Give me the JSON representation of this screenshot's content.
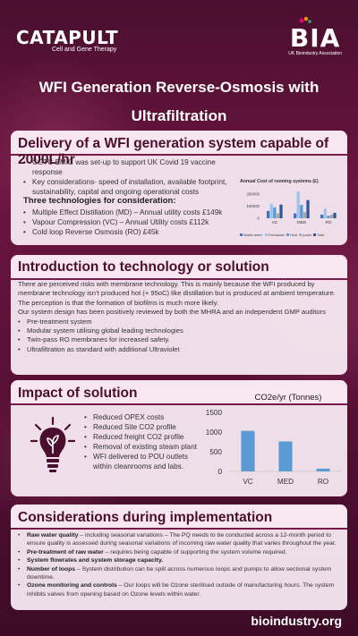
{
  "header": {
    "catapult_word_big": "CATAPULT",
    "catapult_sub": "Cell and Gene Therapy",
    "bia_word": "BIA",
    "bia_sub": "UK Bioindustry Association"
  },
  "title": {
    "line1": "WFI Generation Reverse-Osmosis with",
    "line2": "Ultrafiltration"
  },
  "delivery": {
    "title": "Delivery of a WFI generation system capable of 2000L/hr",
    "bullets": [
      "CGTC BMIC was set-up to support UK Covid 19 vaccine response",
      "Key considerations- speed of installation, available footprint, sustainability, capital and ongoing operational costs"
    ],
    "subhead": "Three technologies for consideration:",
    "tech": [
      "Multiple Effect Distillation (MD) – Annual utility costs £149k",
      "Vapour Compression (VC) – Annual Utility costs £112k",
      "Cold loop Reverse Osmosis (RO) £45k"
    ]
  },
  "intro": {
    "title": "Introduction to technology or solution",
    "paragraphs": [
      "There are perceived risks with membrane technology. This is mainly because the WFI produced by membrane technology isn’t produced hot (+ 95oC) like distillation but is produced at ambient temperature.",
      "The perception is that the formation of biofilms is much more likely.",
      "Our system design has been positively reviewed by both the MHRA and an independent GMP auditors"
    ],
    "bullets": [
      "Pre-treatment system",
      "Modular system utilising global leading technologies",
      "Twin-pass RO membranes for increased safety.",
      "Ultrafiltration as standard with additional Ultraviolet"
    ]
  },
  "impact": {
    "title": "Impact of solution",
    "bullets": [
      "Reduced OPEX costs",
      "Reduced Site CO2 profile",
      "Reduced freight CO2 profile",
      "Removal of existing steam plant",
      "WFI delivered to POU outlets within cleanrooms and labs."
    ]
  },
  "considerations": {
    "title": "Considerations during implementation",
    "items": [
      {
        "bold": "Raw water quality",
        "text": " – including seasonal variations – The PQ needs to be conducted across a 12-month period to ensure quality is assessed during seasonal variations of incoming raw water quality that varies throughout the year."
      },
      {
        "bold": "Pre-treatment of raw water",
        "text": " – requires being capable of supporting the system volume required."
      },
      {
        "bold": "System flowrates and system storage capacity.",
        "text": ""
      },
      {
        "bold": "Number of loops",
        "text": " – System distribution can be split across numerous loops and pumps to allow sectional system downtime."
      },
      {
        "bold": "Ozone monitoring and controls",
        "text": " – Our loops will be Ozone sterilised outside of manufacturing hours. The system inhibits valves from opening based on Ozone levels within water."
      }
    ]
  },
  "footer": {
    "url": "bioindustry.org"
  },
  "colors": {
    "bar": "#5b9bd5",
    "accent": "#4a0f2e"
  },
  "chart_data": [
    {
      "type": "bar",
      "title": "Annual Cost of running systems (£)",
      "categories": [
        "VC",
        "MED",
        "RO"
      ],
      "series": [
        {
          "name": "Waste water",
          "values": [
            60000,
            40000,
            30000
          ],
          "color": "#4472c4"
        },
        {
          "name": "Feedwater",
          "values": [
            120000,
            220000,
            80000
          ],
          "color": "#9dc3e6"
        },
        {
          "name": "Heat",
          "values": [
            90000,
            110000,
            20000
          ],
          "color": "#5b9bd5"
        },
        {
          "name": "power",
          "values": [
            40000,
            50000,
            30000
          ],
          "color": "#a9a9a9"
        },
        {
          "name": "Total",
          "values": [
            112000,
            149000,
            45000
          ],
          "color": "#2f5597"
        }
      ],
      "yticks": [
        "200000",
        "100000",
        "0"
      ],
      "ylim": [
        0,
        250000
      ]
    },
    {
      "type": "bar",
      "title": "CO2e/yr (Tonnes)",
      "categories": [
        "VC",
        "MED",
        "RO"
      ],
      "values": [
        1030,
        760,
        70
      ],
      "yticks": [
        "1500",
        "1000",
        "500",
        "0"
      ],
      "ylim": [
        0,
        1500
      ]
    }
  ]
}
